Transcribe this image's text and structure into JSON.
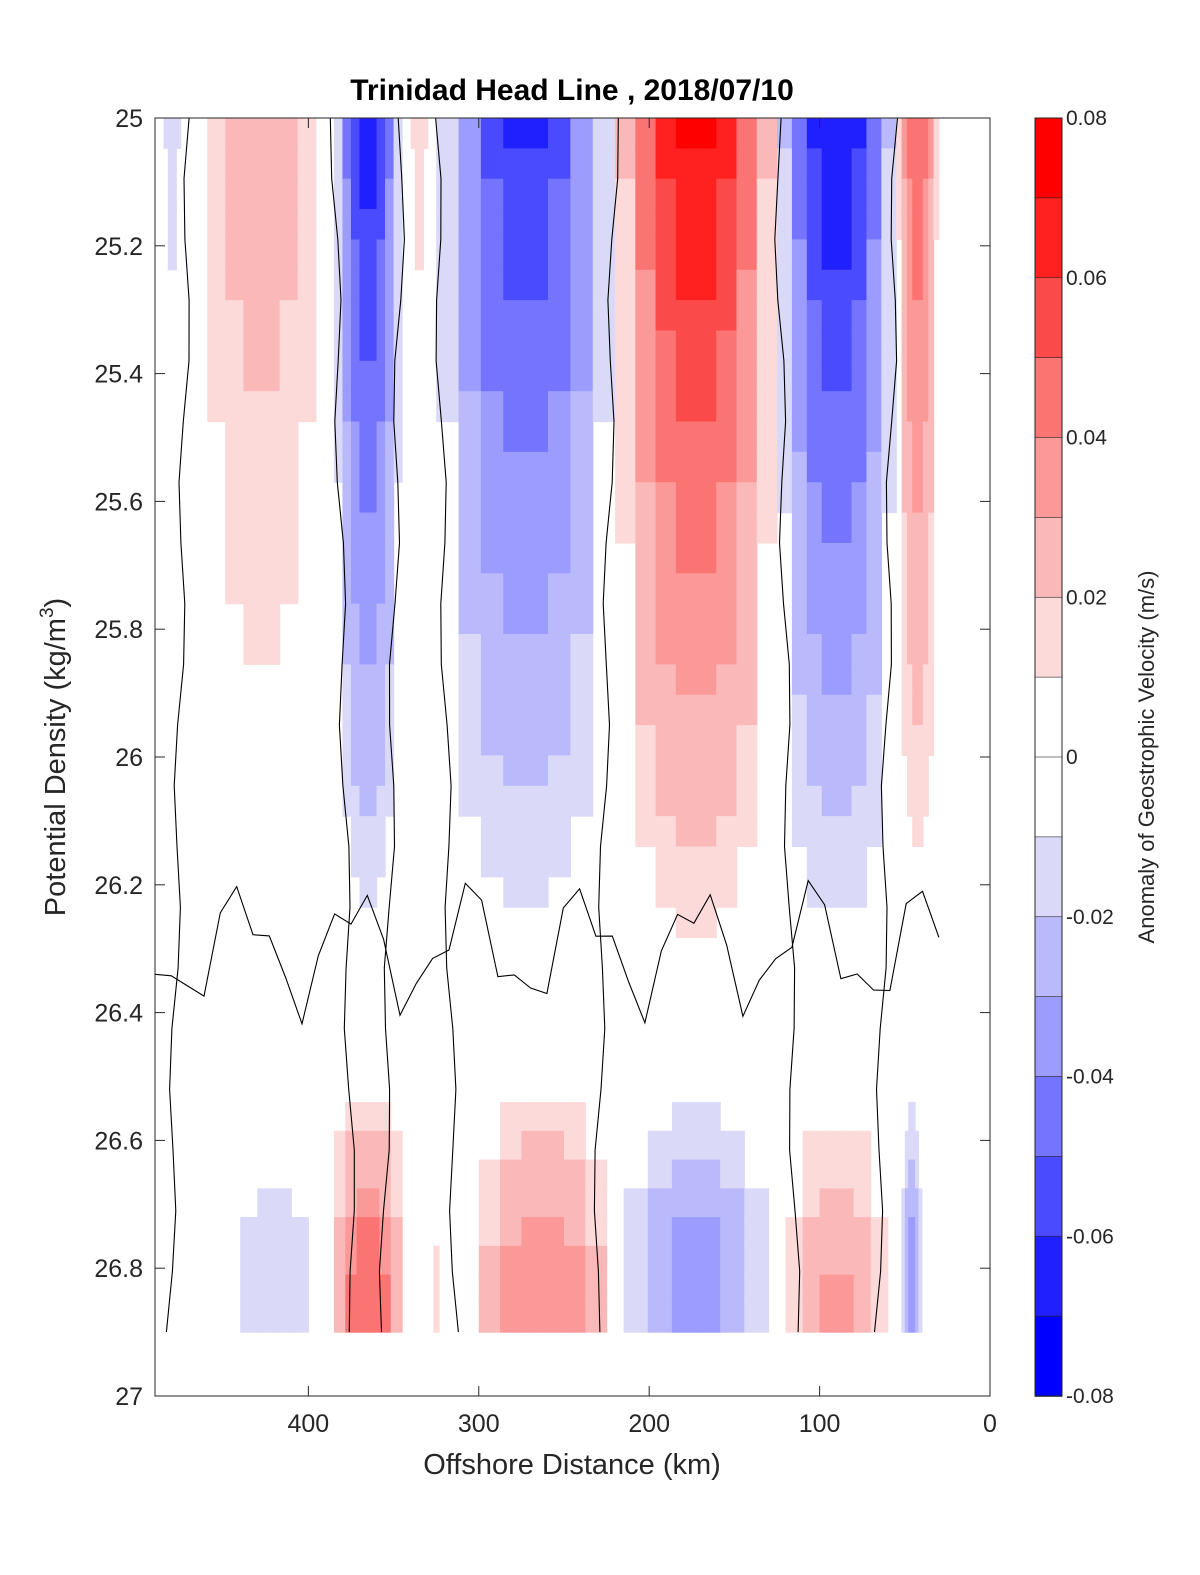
{
  "chart_data": {
    "type": "heatmap",
    "title": "Trinidad Head Line , 2018/07/10",
    "xlabel": "Offshore Distance (km)",
    "ylabel": "Potential Density (kg/m",
    "ylabel_sup": "3",
    "ylabel_suffix": ")",
    "colorbar_label": "Anomaly of Geostrophic Velocity (m/s)",
    "x_reversed": true,
    "y_reversed": true,
    "xlim": [
      0,
      490
    ],
    "ylim": [
      25,
      27
    ],
    "x_ticks": [
      400,
      300,
      200,
      100,
      0
    ],
    "y_ticks": [
      25,
      25.2,
      25.4,
      25.6,
      25.8,
      26,
      26.2,
      26.4,
      26.6,
      26.8,
      27
    ],
    "colorbar_ticks": [
      0.08,
      0.06,
      0.04,
      0.02,
      0,
      -0.02,
      -0.04,
      -0.06,
      -0.08
    ],
    "colorbar_range": [
      -0.08,
      0.08
    ],
    "colormap": [
      "#0000ff",
      "#2020ff",
      "#4a4aff",
      "#7474ff",
      "#9c9cff",
      "#b9b9fb",
      "#dadaf8",
      "#ffffff",
      "#fddada",
      "#fbb8b8",
      "#fb9898",
      "#fb7474",
      "#fb4a4a",
      "#ff2020",
      "#ff0000"
    ],
    "data_bottom_sigma": 26.9,
    "zero_contour_color": "#000000",
    "description_of_field": "Alternating bands of positive and negative geostrophic velocity anomaly along the section",
    "bands": [
      {
        "x0": 490,
        "x1": 470,
        "peak": -0.012
      },
      {
        "x0": 470,
        "x1": 385,
        "peak": 0.025
      },
      {
        "x0": 385,
        "x1": 345,
        "peak": -0.07
      },
      {
        "x0": 345,
        "x1": 325,
        "peak": 0.012
      },
      {
        "x0": 325,
        "x1": 220,
        "peak": -0.065
      },
      {
        "x0": 220,
        "x1": 125,
        "peak": 0.078
      },
      {
        "x0": 125,
        "x1": 55,
        "peak": -0.075
      },
      {
        "x0": 55,
        "x1": 30,
        "peak": 0.05
      }
    ],
    "deep_patches": [
      {
        "x0": 450,
        "x1": 390,
        "peak": -0.015
      },
      {
        "x0": 385,
        "x1": 345,
        "peak": 0.05
      },
      {
        "x0": 330,
        "x1": 320,
        "peak": 0.012
      },
      {
        "x0": 300,
        "x1": 225,
        "peak": 0.04
      },
      {
        "x0": 215,
        "x1": 130,
        "peak": -0.035
      },
      {
        "x0": 120,
        "x1": 60,
        "peak": 0.03
      },
      {
        "x0": 52,
        "x1": 40,
        "peak": -0.035
      }
    ]
  }
}
